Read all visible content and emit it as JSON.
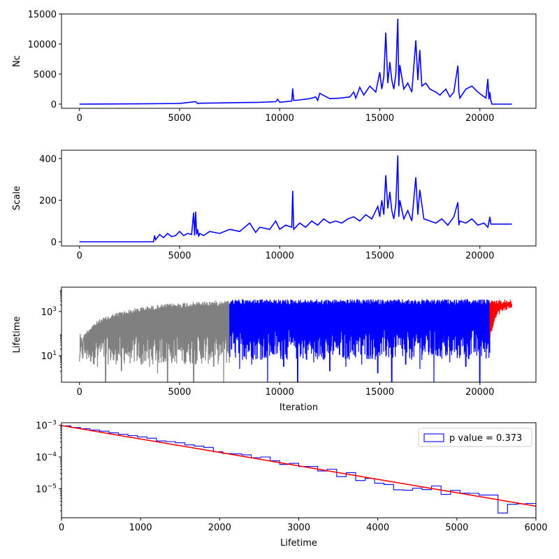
{
  "chart_data": [
    {
      "type": "line",
      "panel": "nc",
      "xlabel": "",
      "ylabel": "Nc",
      "xlim": [
        -900,
        22800
      ],
      "ylim": [
        -700,
        15000
      ],
      "xticks": [
        0,
        5000,
        10000,
        15000,
        20000
      ],
      "xtick_labels": [
        "0",
        "5000",
        "10000",
        "15000",
        "20000"
      ],
      "yticks": [
        0,
        5000,
        10000,
        15000
      ],
      "ytick_labels": [
        "0",
        "5000",
        "10000",
        "15000"
      ],
      "grid": false,
      "series": [
        {
          "color": "#0000ff",
          "x": [
            0,
            3000,
            5000,
            5800,
            5900,
            6000,
            7000,
            8000,
            9000,
            9800,
            9900,
            10000,
            10600,
            10650,
            10700,
            11000,
            11500,
            11800,
            11900,
            12000,
            12500,
            13000,
            13500,
            13700,
            13800,
            14000,
            14200,
            14500,
            14800,
            15000,
            15100,
            15200,
            15300,
            15400,
            15500,
            15600,
            15700,
            15800,
            15900,
            15950,
            16000,
            16200,
            16400,
            16600,
            16800,
            16900,
            17000,
            17100,
            17300,
            17500,
            17800,
            18000,
            18300,
            18500,
            18700,
            18900,
            18950,
            19000,
            19300,
            19600,
            19900,
            20100,
            20300,
            20400,
            20450,
            20500,
            20550,
            20600,
            21600
          ],
          "y": [
            0,
            50,
            100,
            400,
            100,
            150,
            200,
            250,
            300,
            400,
            800,
            300,
            500,
            2600,
            600,
            700,
            900,
            1200,
            600,
            1800,
            900,
            1000,
            1200,
            2000,
            1000,
            2800,
            1500,
            3000,
            2000,
            5300,
            2500,
            4500,
            11900,
            3500,
            7000,
            4000,
            2500,
            5000,
            14200,
            3000,
            6500,
            2500,
            3500,
            2000,
            10600,
            4000,
            9000,
            3000,
            3500,
            2500,
            2000,
            1500,
            2500,
            1200,
            2000,
            6400,
            2000,
            1000,
            2500,
            3000,
            2000,
            1500,
            1000,
            4200,
            800,
            2000,
            600,
            0,
            0
          ]
        }
      ]
    },
    {
      "type": "line",
      "panel": "scale",
      "xlabel": "",
      "ylabel": "Scale",
      "xlim": [
        -900,
        22800
      ],
      "ylim": [
        -20,
        440
      ],
      "xticks": [
        0,
        5000,
        10000,
        15000,
        20000
      ],
      "xtick_labels": [
        "0",
        "5000",
        "10000",
        "15000",
        "20000"
      ],
      "yticks": [
        0,
        200,
        400
      ],
      "ytick_labels": [
        "0",
        "200",
        "400"
      ],
      "grid": false,
      "series": [
        {
          "color": "#0000ff",
          "x": [
            0,
            3700,
            3750,
            3800,
            4000,
            4200,
            4400,
            4600,
            4800,
            5000,
            5200,
            5400,
            5600,
            5700,
            5750,
            5800,
            5850,
            5900,
            5950,
            6000,
            6200,
            6500,
            7000,
            7500,
            8000,
            8500,
            8800,
            9000,
            9500,
            9800,
            10000,
            10300,
            10600,
            10650,
            10700,
            11000,
            11300,
            11600,
            11900,
            12200,
            12500,
            12800,
            13100,
            13400,
            13700,
            14000,
            14300,
            14600,
            14900,
            15000,
            15100,
            15200,
            15300,
            15400,
            15500,
            15600,
            15700,
            15800,
            15900,
            15950,
            16000,
            16200,
            16400,
            16600,
            16800,
            16900,
            17000,
            17200,
            17500,
            17800,
            18100,
            18400,
            18700,
            18900,
            18950,
            19000,
            19300,
            19600,
            19900,
            20200,
            20400,
            20500,
            20550,
            20600,
            21600
          ],
          "y": [
            0,
            0,
            30,
            10,
            35,
            20,
            40,
            25,
            30,
            50,
            30,
            40,
            35,
            140,
            30,
            145,
            35,
            60,
            25,
            40,
            30,
            50,
            40,
            60,
            50,
            90,
            45,
            70,
            60,
            100,
            60,
            80,
            70,
            245,
            60,
            90,
            70,
            100,
            80,
            110,
            90,
            100,
            90,
            110,
            120,
            100,
            130,
            110,
            170,
            120,
            200,
            130,
            320,
            160,
            240,
            150,
            110,
            180,
            415,
            120,
            200,
            110,
            150,
            100,
            310,
            130,
            250,
            110,
            100,
            90,
            110,
            80,
            120,
            190,
            80,
            100,
            90,
            110,
            80,
            90,
            70,
            120,
            85,
            85,
            85
          ]
        }
      ]
    },
    {
      "type": "line",
      "panel": "lifetime",
      "xlabel": "Iteration",
      "ylabel": "Lifetime",
      "xlim": [
        -900,
        22800
      ],
      "ylim_log10": [
        -0.2,
        4.1
      ],
      "yscale": "log",
      "xticks": [
        0,
        5000,
        10000,
        15000,
        20000
      ],
      "xtick_labels": [
        "0",
        "5000",
        "10000",
        "15000",
        "20000"
      ],
      "yticks_log10": [
        1,
        3
      ],
      "ytick_base": "10",
      "ytick_exponents": [
        "1",
        "3"
      ],
      "grid": false,
      "series": [
        {
          "color": "#808080",
          "x_range": [
            0,
            7500
          ],
          "upper_envelope_x": [
            0,
            50,
            150,
            300,
            600,
            1000,
            1500,
            2000,
            3000,
            4000,
            5000,
            6000,
            7000,
            7500
          ],
          "upper_envelope_log10": [
            0.9,
            1.4,
            1.8,
            2.1,
            2.4,
            2.65,
            2.85,
            3.0,
            3.2,
            3.32,
            3.4,
            3.46,
            3.5,
            3.52
          ],
          "lower_band_log10": [
            0.6,
            2.0
          ],
          "drop_outs_x": [
            900,
            1300,
            1700,
            2100,
            2600,
            3100,
            3500,
            3900,
            4400,
            4800,
            5300,
            5700,
            6200,
            6700,
            7200
          ],
          "drop_outs_log10": [
            0.5,
            -0.2,
            0.8,
            0.3,
            0.9,
            0.6,
            0.5,
            0.2,
            -0.2,
            1.0,
            0.7,
            -0.2,
            0.9,
            0.5,
            -0.2
          ]
        },
        {
          "color": "#0000ff",
          "x_range": [
            7500,
            20500
          ],
          "upper_level_log10": 3.55,
          "lower_band_log10": [
            0.8,
            2.2
          ],
          "drop_outs_x": [
            8000,
            8600,
            9400,
            10200,
            10900,
            11700,
            12500,
            13300,
            14100,
            14900,
            15600,
            16300,
            17000,
            17700,
            18500,
            19300,
            20000
          ],
          "drop_outs_log10": [
            0.4,
            0.6,
            -0.2,
            0.5,
            -0.2,
            0.7,
            0.3,
            0.5,
            0.6,
            0.2,
            -0.2,
            0.6,
            0.4,
            -0.2,
            0.7,
            0.5,
            -0.2
          ]
        },
        {
          "color": "#ff0000",
          "x_range": [
            20500,
            21600
          ],
          "upper_level_log10": 3.55,
          "lower_envelope_x": [
            20500,
            20600,
            20700,
            20850,
            21000,
            21200,
            21400,
            21600
          ],
          "lower_envelope_log10": [
            1.7,
            2.1,
            2.5,
            2.75,
            2.9,
            3.0,
            3.05,
            3.1
          ]
        }
      ]
    },
    {
      "type": "line",
      "panel": "histogram",
      "xlabel": "Lifetime",
      "ylabel": "",
      "xlim": [
        0,
        6000
      ],
      "ylim_log10": [
        -5.92,
        -2.92
      ],
      "yscale": "log",
      "xticks": [
        0,
        1000,
        2000,
        3000,
        4000,
        5000,
        6000
      ],
      "xtick_labels": [
        "0",
        "1000",
        "2000",
        "3000",
        "4000",
        "5000",
        "6000"
      ],
      "yticks_log10": [
        -5,
        -4,
        -3
      ],
      "ytick_base": "10",
      "ytick_exponents": [
        "−5",
        "−4",
        "−3"
      ],
      "legend": {
        "label": "p value = 0.373",
        "placement": "upper right"
      },
      "grid": false,
      "series": [
        {
          "name": "p value = 0.373",
          "style": "step",
          "color": "#0000ff",
          "bin_edges": [
            0,
            120,
            240,
            360,
            480,
            600,
            720,
            840,
            960,
            1080,
            1200,
            1320,
            1440,
            1560,
            1680,
            1800,
            1920,
            2040,
            2160,
            2280,
            2400,
            2520,
            2640,
            2760,
            2880,
            3000,
            3120,
            3240,
            3360,
            3480,
            3600,
            3720,
            3840,
            3960,
            4080,
            4200,
            4320,
            4440,
            4560,
            4680,
            4800,
            4920,
            5040,
            5160,
            5280,
            5400,
            5520,
            5640,
            5760,
            5880,
            6000
          ],
          "values": [
            0.00095,
            0.00085,
            0.00078,
            0.00071,
            0.00065,
            0.00058,
            0.00052,
            0.00047,
            0.00043,
            0.00039,
            0.00032,
            0.000305,
            0.00028,
            0.00024,
            0.00022,
            0.0002,
            0.000145,
            0.000128,
            0.000125,
            0.000117,
            9.5e-05,
            0.0001,
            7.6e-05,
            5.8e-05,
            6.3e-05,
            5e-05,
            5e-05,
            3.6e-05,
            4.1e-05,
            2.4e-05,
            3.2e-05,
            1.8e-05,
            2.1e-05,
            1.48e-05,
            1.35e-05,
            9.2e-06,
            8.9e-06,
            1.03e-05,
            9.3e-06,
            1.21e-05,
            6.6e-06,
            8.8e-06,
            7.2e-06,
            7.1e-06,
            6.3e-06,
            6.3e-06,
            1.7e-06,
            3.2e-06,
            3.3e-06,
            3.4e-06
          ]
        },
        {
          "style": "line",
          "color": "#ff0000",
          "x": [
            0,
            6000
          ],
          "y": [
            0.00098,
            2.8e-06
          ]
        }
      ]
    }
  ]
}
